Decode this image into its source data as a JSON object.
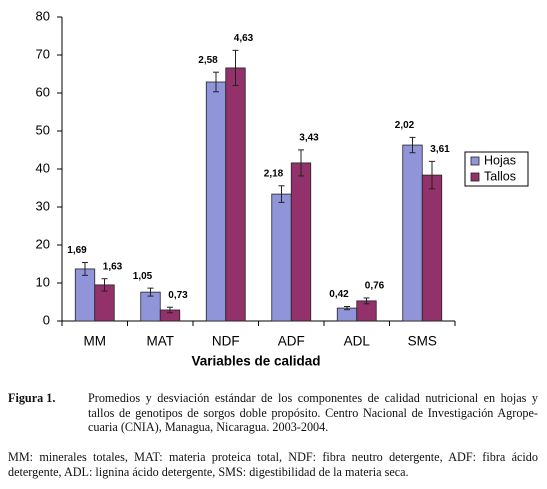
{
  "chart_data": {
    "type": "bar",
    "x_label": "Variables de calidad",
    "categories": [
      "MM",
      "MAT",
      "NDF",
      "ADF",
      "ADL",
      "SMS"
    ],
    "series": [
      {
        "name": "Hojas",
        "color": "#9095d9",
        "values": [
          13.7,
          7.6,
          62.9,
          33.4,
          3.4,
          46.3
        ],
        "errors": [
          1.69,
          1.05,
          2.58,
          2.18,
          0.42,
          2.02
        ],
        "error_labels": [
          "1,69",
          "1,05",
          "2,58",
          "2,18",
          "0,42",
          "2,02"
        ]
      },
      {
        "name": "Tallos",
        "color": "#93316b",
        "values": [
          9.5,
          2.9,
          66.6,
          41.6,
          5.3,
          38.4
        ],
        "errors": [
          1.63,
          0.73,
          4.63,
          3.43,
          0.76,
          3.61
        ],
        "error_labels": [
          "1,63",
          "0,73",
          "4,63",
          "3,43",
          "0,76",
          "3,61"
        ]
      }
    ],
    "ylim": [
      0,
      80
    ],
    "yticks": [
      0,
      10,
      20,
      30,
      40,
      50,
      60,
      70,
      80
    ],
    "legend": "right"
  },
  "caption": {
    "label": "Figura 1.",
    "lines": [
      "Promedios y desviación estándar de los componentes de calidad nutricional en hojas y",
      "tallos de genotipos de sorgos doble propósito. Centro Nacional de Investigación Agrope-",
      "cuaria (CNIA), Managua, Nicaragua. 2003-2004."
    ]
  },
  "note": {
    "lines": [
      "MM: minerales totales, MAT: materia proteica total, NDF: fibra neutro detergente, ADF: fibra ácido",
      "detergente, ADL: lignina ácido detergente, SMS: digestibilidad de la materia seca."
    ]
  }
}
